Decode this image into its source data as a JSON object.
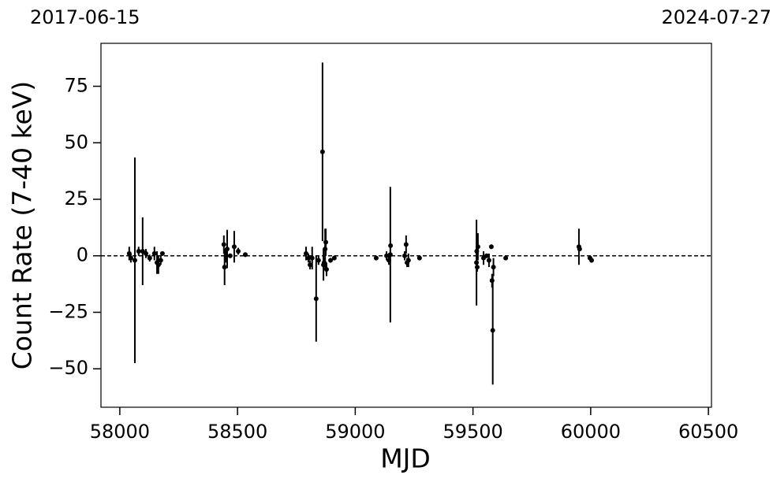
{
  "chart_data": {
    "type": "errorbar",
    "x_label": "MJD",
    "y_label": "Count Rate (7-40 keV)",
    "top_labels": [
      "2017-06-15",
      "2024-07-27"
    ],
    "xlim": [
      57920,
      60513
    ],
    "ylim": [
      -67,
      94
    ],
    "xticks": [
      58000,
      58500,
      59000,
      59500,
      60000,
      60500
    ],
    "yticks": [
      {
        "value": -50,
        "label": "−50"
      },
      {
        "value": -25,
        "label": "−25"
      },
      0,
      25,
      50,
      75
    ],
    "hline": 0,
    "color": "#000000",
    "x": [
      58040,
      58047,
      58064,
      58080,
      58097,
      58111,
      58127,
      58147,
      58158,
      58164,
      58174,
      58181,
      58442,
      58445,
      58451,
      58456,
      58469,
      58486,
      58503,
      58533,
      58791,
      58801,
      58808,
      58817,
      58834,
      58844,
      58861,
      58865,
      58868,
      58872,
      58875,
      58878,
      58895,
      58911,
      59089,
      59133,
      59143,
      59149,
      59150,
      59210,
      59216,
      59220,
      59226,
      59273,
      59515,
      59516,
      59518,
      59521,
      59545,
      59558,
      59568,
      59578,
      59581,
      59584,
      59587,
      59639,
      59950,
      59953,
      59997,
      60004
    ],
    "values": [
      1,
      -1,
      -2,
      2,
      2,
      1,
      -1,
      1,
      -3,
      -4,
      -2,
      1,
      5,
      -5,
      0,
      3,
      0,
      4,
      2,
      0.5,
      1,
      -1,
      -4,
      -1,
      -19,
      -2,
      46,
      -4,
      -3,
      3,
      6,
      -6,
      -2,
      -1,
      -1,
      0,
      -2,
      0.5,
      4.5,
      0,
      5,
      -3,
      -2,
      -1,
      -3,
      2,
      -5,
      4,
      -1,
      0,
      -2,
      4,
      -11,
      -33,
      -5,
      -1,
      4,
      3,
      -1,
      -2
    ],
    "errors": [
      3,
      2,
      45.5,
      2,
      15,
      2,
      1.5,
      3,
      5,
      4,
      2,
      1,
      4,
      8,
      3,
      8.5,
      1,
      7,
      1.5,
      1,
      3,
      2,
      2,
      5,
      19,
      2,
      39.5,
      7,
      2,
      9,
      6,
      3,
      1,
      1,
      1,
      2,
      2,
      30,
      1,
      2,
      4,
      2,
      3,
      1,
      19,
      1,
      2,
      6,
      3,
      1,
      3,
      1,
      3,
      24,
      4,
      1,
      8,
      1,
      1,
      1
    ]
  }
}
